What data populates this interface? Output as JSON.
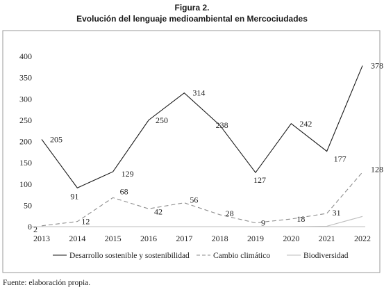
{
  "figure_label": "Figura 2.",
  "figure_title": "Evolución del lenguaje medioambiental en Mercociudades",
  "source_note": "Fuente: elaboración propia.",
  "chart_data": {
    "type": "line",
    "x": [
      "2013",
      "2014",
      "2015",
      "2016",
      "2017",
      "2018",
      "2019",
      "2020",
      "2021",
      "2022"
    ],
    "ylim": [
      0,
      400
    ],
    "yticks": [
      0,
      50,
      100,
      150,
      200,
      250,
      300,
      350,
      400
    ],
    "grid": false,
    "legend_position": "bottom",
    "series": [
      {
        "name": "Desarrollo sostenible y sostenibilidad",
        "values": [
          205,
          91,
          129,
          250,
          314,
          238,
          127,
          242,
          177,
          378
        ],
        "labels": [
          "205",
          "91",
          "129",
          "250",
          "314",
          "238",
          "127",
          "242",
          "177",
          "378"
        ],
        "color": "#1a1a1a",
        "dash": "none"
      },
      {
        "name": "Cambio climático",
        "values": [
          2,
          12,
          68,
          42,
          56,
          28,
          9,
          18,
          31,
          128
        ],
        "labels": [
          "2",
          "12",
          "68",
          "42",
          "56",
          "28",
          "9",
          "18",
          "31",
          "128"
        ],
        "color": "#8c8c8c",
        "dash": "6,4"
      },
      {
        "name": "Biodiversidad",
        "values": [
          0,
          0,
          0,
          0,
          0,
          0,
          0,
          0,
          1,
          24
        ],
        "labels": [],
        "color": "#bdbdbd",
        "dash": "none"
      }
    ]
  }
}
